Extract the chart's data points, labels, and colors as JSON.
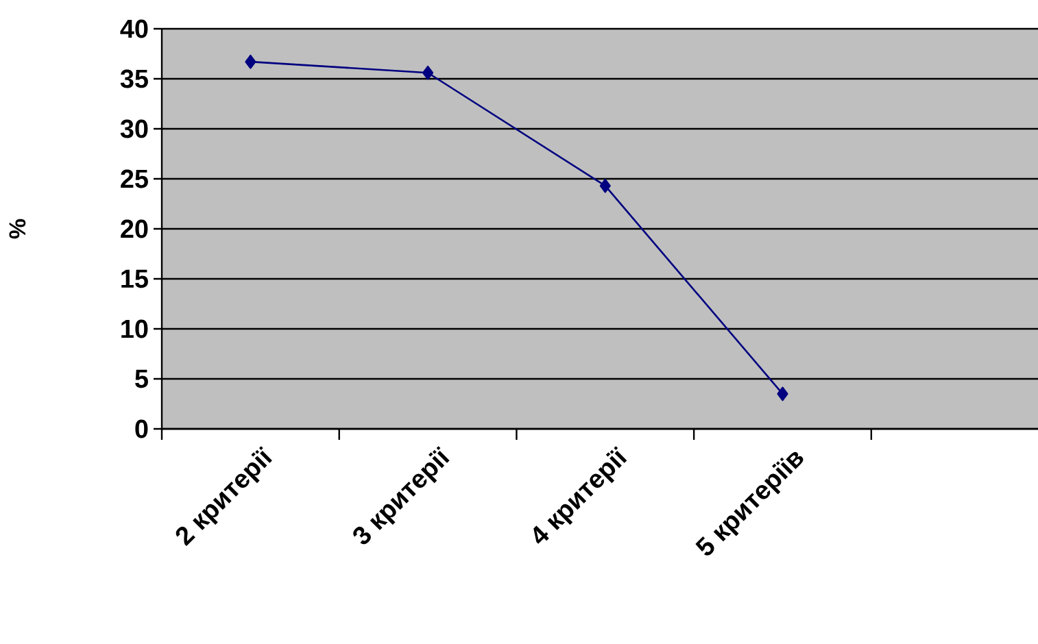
{
  "chart_data": {
    "type": "line",
    "ylabel": "%",
    "categories": [
      "2 критерії",
      "3 критерії",
      "4 критерії",
      "5 критеріїв",
      null
    ],
    "series": [
      {
        "color": "#000080",
        "values": [
          36.7,
          35.6,
          24.3,
          3.5,
          null
        ]
      }
    ],
    "ylim": [
      0,
      40
    ],
    "yticks": [
      0,
      5,
      10,
      15,
      20,
      25,
      30,
      35,
      40
    ],
    "grid": "y",
    "marker": "diamond",
    "line_style": "solid"
  }
}
